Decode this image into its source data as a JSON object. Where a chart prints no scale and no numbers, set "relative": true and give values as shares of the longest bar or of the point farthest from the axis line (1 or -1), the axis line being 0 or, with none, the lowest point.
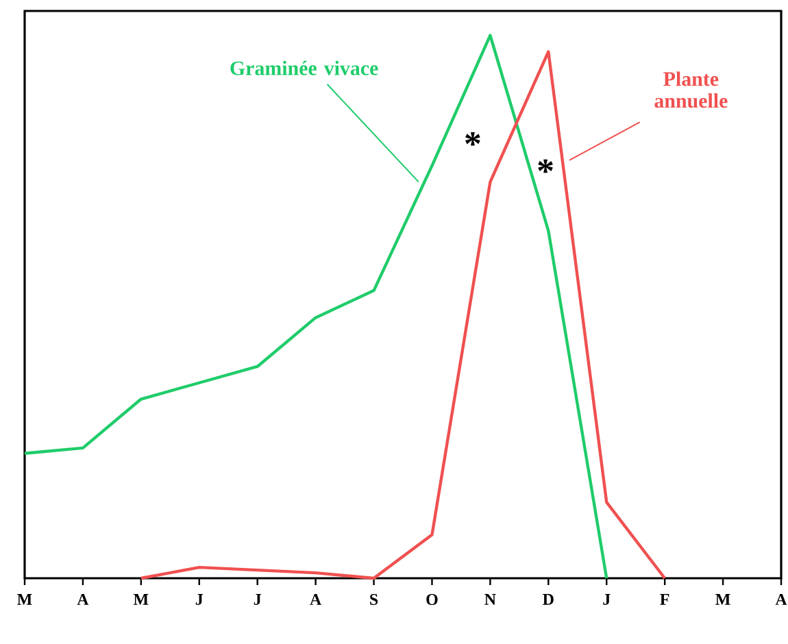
{
  "chart_data": {
    "type": "line",
    "relative": true,
    "categories": [
      "M",
      "A",
      "M",
      "J",
      "J",
      "A",
      "S",
      "O",
      "N",
      "D",
      "J",
      "F",
      "M",
      "A"
    ],
    "series": [
      {
        "name": "Graminée vivace",
        "color": "#1fcc6a",
        "values": [
          0.23,
          0.24,
          0.33,
          0.36,
          0.39,
          0.48,
          0.53,
          0.76,
          1,
          0.64,
          0,
          null,
          null,
          null
        ]
      },
      {
        "name": "Plante annuelle",
        "color": "#f05050",
        "values": [
          null,
          null,
          0,
          0.02,
          0.015,
          0.01,
          0,
          0.08,
          0.73,
          0.97,
          0.14,
          0,
          null,
          null
        ]
      }
    ],
    "annotations": [
      "*",
      "*"
    ]
  }
}
